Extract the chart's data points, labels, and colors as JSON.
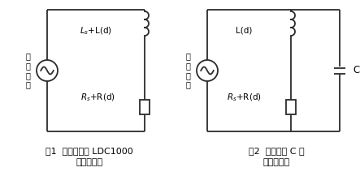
{
  "fig_width": 4.43,
  "fig_height": 2.33,
  "dpi": 100,
  "bg_color": "#ffffff",
  "line_color": "#2b2b2b",
  "line_width": 1.3,
  "fig1_caption_line1": "图1  产生互感的 LDC1000",
  "fig1_caption_line2": "线圈等效图",
  "fig2_caption_line1": "图2  并联电容 C 后",
  "fig2_caption_line2": "线圈原理图",
  "label_L1": "$L_s$+L(d)",
  "label_R1": "$R_s$+R(d)",
  "label_L2": "L(d)",
  "label_R2": "$R_s$+R(d)",
  "label_source": "交\n流\n电\n源",
  "label_C": "C"
}
